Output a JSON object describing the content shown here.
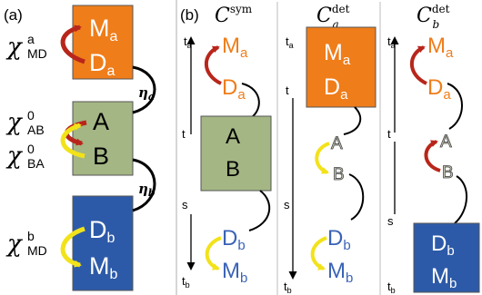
{
  "panel_a": {
    "tag": "(a)",
    "chi_md_a": {
      "sym": "χ",
      "sup": "a",
      "sub": "MD"
    },
    "chi_ab": {
      "sym": "χ",
      "sup": "0",
      "sub": "AB"
    },
    "chi_ba": {
      "sym": "χ",
      "sup": "0",
      "sub": "BA"
    },
    "chi_md_b": {
      "sym": "χ",
      "sup": "b",
      "sub": "MD"
    },
    "box_top": {
      "m": "M",
      "m_sub": "a",
      "d": "D",
      "d_sub": "a"
    },
    "box_mid": {
      "a": "A",
      "b": "B"
    },
    "box_bot": {
      "d": "D",
      "d_sub": "b",
      "m": "M",
      "m_sub": "b"
    },
    "eta_a": {
      "sym": "η",
      "sub": "a"
    },
    "eta_b": {
      "sym": "η",
      "sub": "b"
    }
  },
  "panel_b": {
    "tag": "(b)",
    "c_sym": {
      "c": "C",
      "sup": "sym",
      "sub": ""
    },
    "c_a": {
      "c": "C",
      "sup": "det",
      "sub": "a"
    },
    "c_b": {
      "c": "C",
      "sup": "det",
      "sub": "b"
    },
    "axis": {
      "ta": "t",
      "ta_sub": "a",
      "t": "t",
      "s": "s",
      "tb": "t",
      "tb_sub": "b"
    },
    "labels": {
      "M": "M",
      "D": "D",
      "A": "A",
      "B": "B",
      "sub_a": "a",
      "sub_b": "b"
    }
  },
  "colors": {
    "orange": "#ef7d1a",
    "green": "#a4b684",
    "blue": "#2d5aa8",
    "red_arrow": "#b8261b",
    "yellow_arrow": "#f2e21a",
    "orange_text": "#ef7d1a",
    "blue_text": "#3a63b6",
    "gray_fill": "#c9cdb7"
  }
}
